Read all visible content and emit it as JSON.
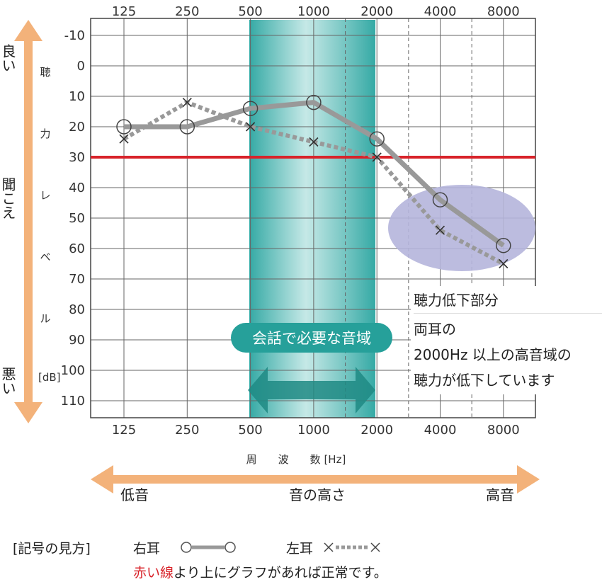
{
  "chart_data": {
    "type": "line",
    "x": [
      125,
      250,
      500,
      1000,
      2000,
      4000,
      8000
    ],
    "x_ticks": [
      "125",
      "250",
      "500",
      "1000",
      "2000",
      "4000",
      "8000"
    ],
    "x_scale": "log2",
    "y_ticks": [
      "-10",
      "0",
      "10",
      "20",
      "30",
      "40",
      "50",
      "60",
      "70",
      "80",
      "90",
      "100",
      "110"
    ],
    "ylim": [
      -10,
      110
    ],
    "y_inverted": true,
    "grid": true,
    "xlabel": "周　　波　　数 [Hz]",
    "yunit": "[dB]",
    "ylabel_chars": [
      "聴",
      "力",
      "レ",
      "ベ",
      "ル"
    ],
    "series": [
      {
        "name": "右耳",
        "values": [
          20,
          20,
          14,
          12,
          24,
          44,
          59
        ],
        "style": "solid",
        "marker": "circle",
        "color": "#999999"
      },
      {
        "name": "左耳",
        "values": [
          24,
          12,
          20,
          25,
          30,
          54,
          65
        ],
        "style": "dotted",
        "marker": "cross",
        "color": "#999999"
      }
    ],
    "threshold": {
      "value": 30,
      "color": "#d8232a"
    },
    "band": {
      "from": 500,
      "to": 2000,
      "label": "会話で必要な音域",
      "color": "#2aa5a0"
    },
    "highlight": {
      "label": "聴力低下部分",
      "color": "#b5b5dc"
    }
  },
  "left_arrow": {
    "top_label": "良い",
    "middle_label": "聞こえ",
    "bottom_label": "悪い",
    "color": "#f3b27a"
  },
  "bottom_arrow": {
    "left_label": "低音",
    "middle_label": "音の高さ",
    "right_label": "高音",
    "color": "#f3b27a"
  },
  "note": {
    "title": "聴力低下部分",
    "line1": "両耳の",
    "line2": "2000Hz 以上の高音域の",
    "line3": "聴力が低下しています"
  },
  "legend": {
    "title": "[記号の見方]",
    "right_label": "右耳",
    "left_label": "左耳",
    "footer_red": "赤い線",
    "footer_rest": "より上にグラフがあれば正常です。"
  }
}
